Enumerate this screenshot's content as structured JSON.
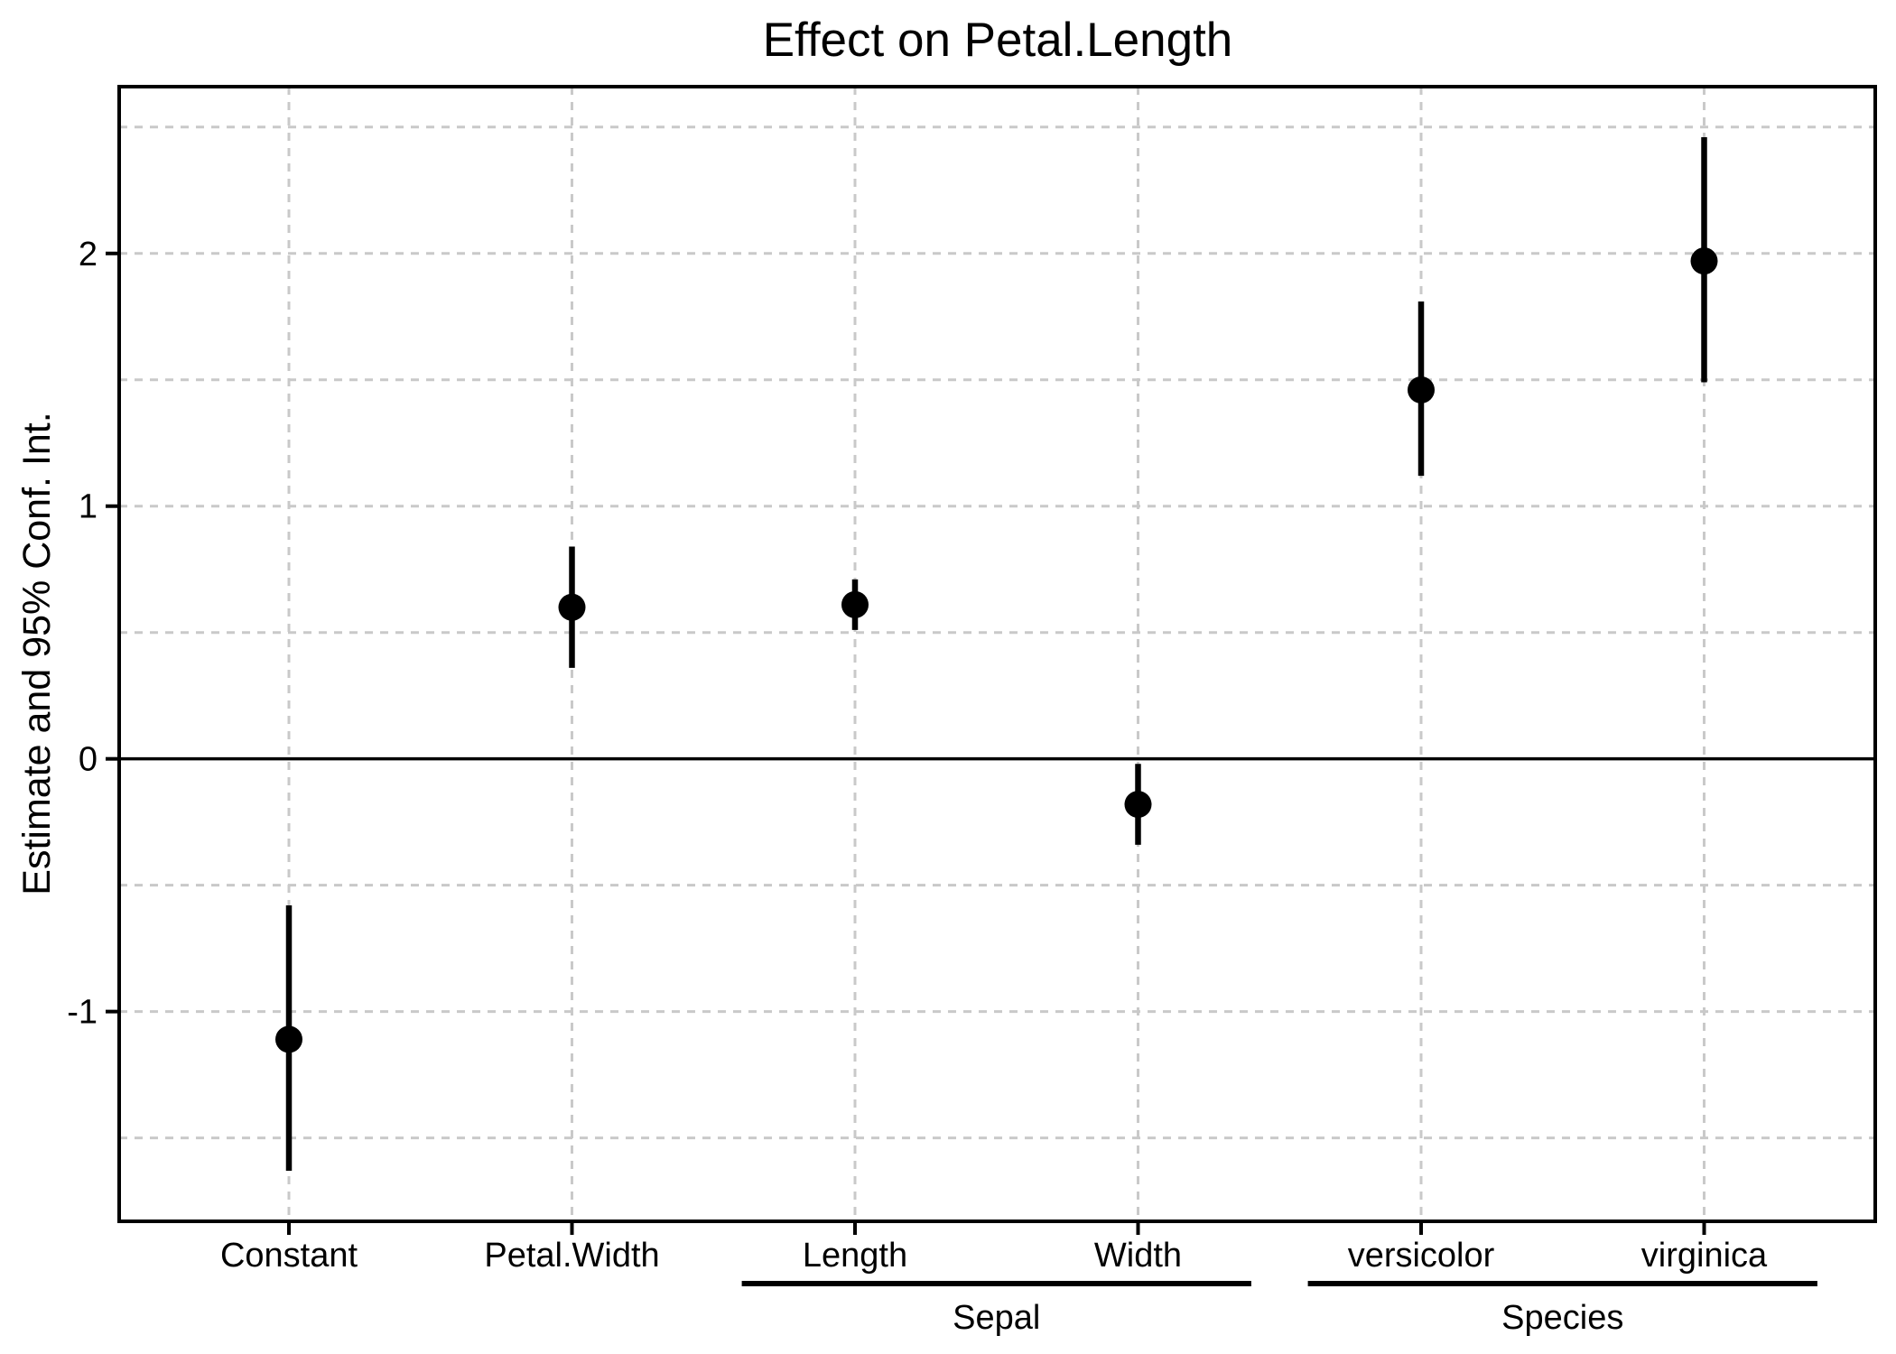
{
  "chart_data": {
    "type": "scatter",
    "subtype": "coefficient-plot-with-ci",
    "title": "Effect on Petal.Length",
    "xlabel": "",
    "ylabel": "Estimate and 95% Conf. Int.",
    "ylim": [
      -1.83,
      2.66
    ],
    "yticks": [
      -1,
      0,
      1,
      2
    ],
    "grid_interval": 0.5,
    "grid": "dashed",
    "legend_position": "none",
    "zero_line": 0,
    "categories": [
      "Constant",
      "Petal.Width",
      "Length",
      "Width",
      "versicolor",
      "virginica"
    ],
    "points": [
      {
        "term": "Constant",
        "group": "",
        "estimate": -1.11,
        "ci_lower": -1.63,
        "ci_upper": -0.58
      },
      {
        "term": "Petal.Width",
        "group": "",
        "estimate": 0.6,
        "ci_lower": 0.36,
        "ci_upper": 0.84
      },
      {
        "term": "Length",
        "group": "Sepal",
        "estimate": 0.61,
        "ci_lower": 0.51,
        "ci_upper": 0.71
      },
      {
        "term": "Width",
        "group": "Sepal",
        "estimate": -0.18,
        "ci_lower": -0.34,
        "ci_upper": -0.02
      },
      {
        "term": "versicolor",
        "group": "Species",
        "estimate": 1.46,
        "ci_lower": 1.12,
        "ci_upper": 1.81
      },
      {
        "term": "virginica",
        "group": "Species",
        "estimate": 1.97,
        "ci_lower": 1.49,
        "ci_upper": 2.46
      }
    ],
    "groups": [
      {
        "label": "Sepal",
        "members": [
          "Length",
          "Width"
        ]
      },
      {
        "label": "Species",
        "members": [
          "versicolor",
          "virginica"
        ]
      }
    ],
    "colors": {
      "point": "#000000",
      "error_bar": "#000000",
      "grid": "#c9c9c9",
      "axis": "#000000",
      "text": "#000000",
      "background": "#ffffff"
    }
  }
}
